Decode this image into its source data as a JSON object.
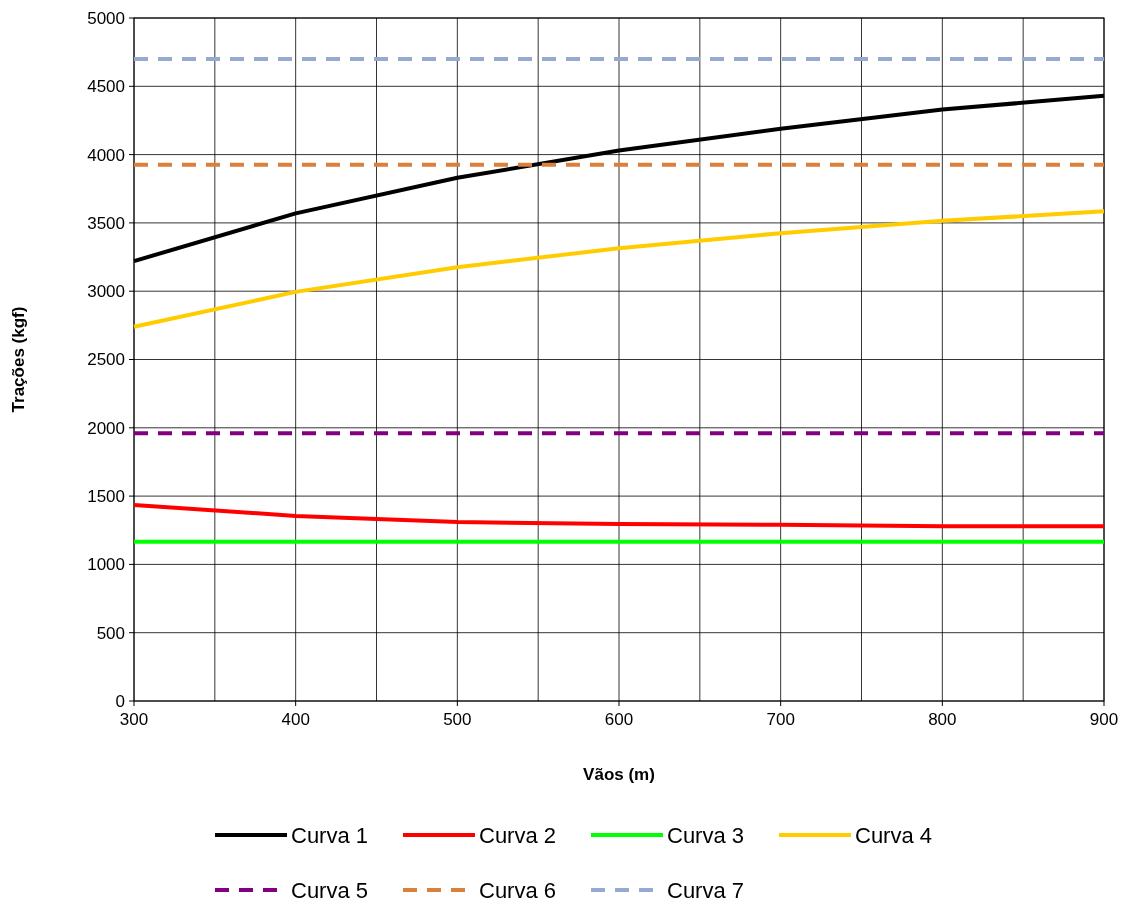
{
  "chart_data": {
    "type": "line",
    "xlabel": "Vãos (m)",
    "ylabel": "Trações (kgf)",
    "x": [
      300,
      400,
      500,
      600,
      700,
      800,
      900
    ],
    "series": [
      {
        "name": "Curva 1",
        "color": "#000000",
        "line_style": "solid",
        "values": [
          3220,
          3570,
          3830,
          4030,
          4190,
          4330,
          4430
        ]
      },
      {
        "name": "Curva 2",
        "color": "#ff0000",
        "line_style": "solid",
        "values": [
          1435,
          1355,
          1310,
          1295,
          1290,
          1280,
          1280
        ]
      },
      {
        "name": "Curva 3",
        "color": "#00ff00",
        "line_style": "solid",
        "values": [
          1165,
          1165,
          1165,
          1165,
          1165,
          1165,
          1165
        ]
      },
      {
        "name": "Curva 4",
        "color": "#ffcc00",
        "line_style": "solid",
        "values": [
          2740,
          2995,
          3175,
          3315,
          3425,
          3515,
          3585
        ]
      },
      {
        "name": "Curva 5",
        "color": "#800080",
        "line_style": "dashed",
        "values": [
          1960,
          1960,
          1960,
          1960,
          1960,
          1960,
          1960
        ]
      },
      {
        "name": "Curva 6",
        "color": "#d9803c",
        "line_style": "dashed",
        "values": [
          3925,
          3925,
          3925,
          3925,
          3925,
          3925,
          3925
        ]
      },
      {
        "name": "Curva 7",
        "color": "#95a9d1",
        "line_style": "dashed",
        "values": [
          4700,
          4700,
          4700,
          4700,
          4700,
          4700,
          4700
        ]
      }
    ],
    "xlim": [
      300,
      900
    ],
    "xticks": [
      300,
      400,
      500,
      600,
      700,
      800,
      900
    ],
    "ylim": [
      0,
      5000
    ],
    "yticks": [
      0,
      500,
      1000,
      1500,
      2000,
      2500,
      3000,
      3500,
      4000,
      4500,
      5000
    ],
    "grid": true,
    "legend": "bottom",
    "marker": "none"
  }
}
